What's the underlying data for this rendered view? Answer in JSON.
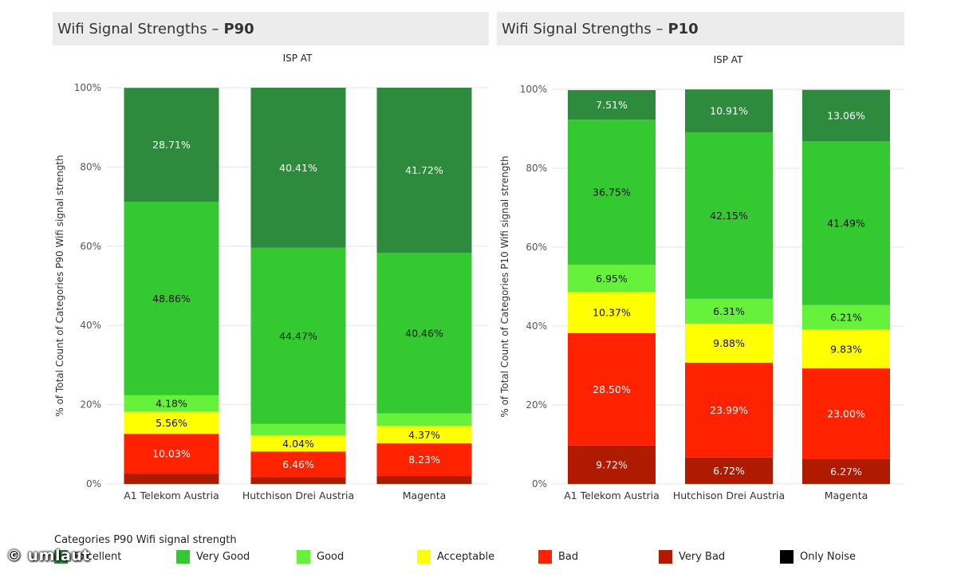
{
  "chart_data": [
    {
      "type": "bar",
      "stacked": true,
      "title": "Wifi Signal Strengths",
      "title_bold": "P90",
      "subtitle": "ISP AT",
      "ylabel": "% of Total Count of Categories P90  Wifi signal strength",
      "ylim": [
        0,
        100
      ],
      "yticks": [
        "0%",
        "20%",
        "40%",
        "60%",
        "80%",
        "100%"
      ],
      "categories": [
        "A1 Telekom Austria",
        "Hutchison Drei Austria",
        "Magenta"
      ],
      "series": [
        {
          "name": "Very Bad",
          "values": [
            2.6,
            1.7,
            2.0
          ],
          "labels": [
            "",
            "",
            ""
          ]
        },
        {
          "name": "Bad",
          "values": [
            10.03,
            6.46,
            8.23
          ],
          "labels": [
            "10.03%",
            "6.46%",
            "8.23%"
          ]
        },
        {
          "name": "Acceptable",
          "values": [
            5.56,
            4.04,
            4.37
          ],
          "labels": [
            "5.56%",
            "4.04%",
            "4.37%"
          ]
        },
        {
          "name": "Good",
          "values": [
            4.18,
            2.92,
            3.22
          ],
          "labels": [
            "4.18%",
            "",
            ""
          ]
        },
        {
          "name": "Very Good",
          "values": [
            48.86,
            44.47,
            40.46
          ],
          "labels": [
            "48.86%",
            "44.47%",
            "40.46%"
          ]
        },
        {
          "name": "Excellent",
          "values": [
            28.71,
            40.41,
            41.72
          ],
          "labels": [
            "28.71%",
            "40.41%",
            "41.72%"
          ]
        }
      ]
    },
    {
      "type": "bar",
      "stacked": true,
      "title": "Wifi Signal Strengths",
      "title_bold": "P10",
      "subtitle": "ISP AT",
      "ylabel": "% of Total Count of Categories P10  Wifi signal strength",
      "ylim": [
        0,
        100
      ],
      "yticks": [
        "0%",
        "20%",
        "40%",
        "60%",
        "80%",
        "100%"
      ],
      "categories": [
        "A1 Telekom Austria",
        "Hutchison Drei Austria",
        "Magenta"
      ],
      "series": [
        {
          "name": "Very Bad",
          "values": [
            9.72,
            6.72,
            6.27
          ],
          "labels": [
            "9.72%",
            "6.72%",
            "6.27%"
          ]
        },
        {
          "name": "Bad",
          "values": [
            28.5,
            23.99,
            23.0
          ],
          "labels": [
            "28.50%",
            "23.99%",
            "23.00%"
          ]
        },
        {
          "name": "Acceptable",
          "values": [
            10.37,
            9.88,
            9.83
          ],
          "labels": [
            "10.37%",
            "9.88%",
            "9.83%"
          ]
        },
        {
          "name": "Good",
          "values": [
            6.95,
            6.31,
            6.21
          ],
          "labels": [
            "6.95%",
            "6.31%",
            "6.21%"
          ]
        },
        {
          "name": "Very Good",
          "values": [
            36.75,
            42.15,
            41.49
          ],
          "labels": [
            "36.75%",
            "42.15%",
            "41.49%"
          ]
        },
        {
          "name": "Excellent",
          "values": [
            7.51,
            10.91,
            13.06
          ],
          "labels": [
            "7.51%",
            "10.91%",
            "13.06%"
          ]
        }
      ]
    }
  ],
  "colors": {
    "Excellent": "#2e8b3e",
    "Very Good": "#34c930",
    "Good": "#66f23a",
    "Acceptable": "#ffff00",
    "Bad": "#ff2200",
    "Very Bad": "#b01a00",
    "Only Noise": "#000000"
  },
  "label_colors": {
    "Excellent": "#ffffff",
    "Very Good": "#111111",
    "Good": "#111111",
    "Acceptable": "#111111",
    "Bad": "#ffffff",
    "Very Bad": "#ffffff"
  },
  "legend": {
    "title": "Categories P90  Wifi signal strength",
    "items": [
      "Excellent",
      "Very Good",
      "Good",
      "Acceptable",
      "Bad",
      "Very Bad",
      "Only Noise"
    ]
  },
  "watermark": "© umlaut"
}
